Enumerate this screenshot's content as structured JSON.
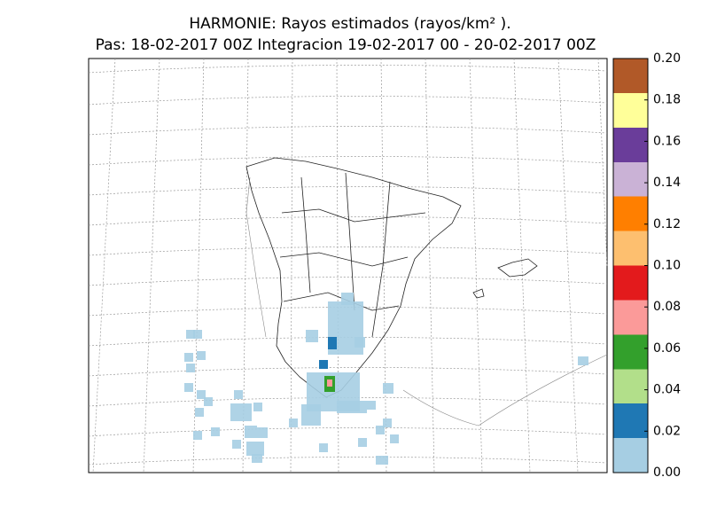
{
  "header": {
    "title": "HARMONIE: Rayos estimados  (rayos/km² ).",
    "subtitle": "Pas: 18-02-2017 00Z Integracion 19-02-2017 00 - 20-02-2017 00Z"
  },
  "colorbar": {
    "lim": [
      0,
      0.2
    ],
    "ticks": [
      {
        "value": 0,
        "label": "0.00"
      },
      {
        "value": 0.02,
        "label": "0.02"
      },
      {
        "value": 0.04,
        "label": "0.04"
      },
      {
        "value": 0.06,
        "label": "0.06"
      },
      {
        "value": 0.08,
        "label": "0.08"
      },
      {
        "value": 0.1,
        "label": "0.10"
      },
      {
        "value": 0.12,
        "label": "0.12"
      },
      {
        "value": 0.14,
        "label": "0.14"
      },
      {
        "value": 0.16,
        "label": "0.16"
      },
      {
        "value": 0.18,
        "label": "0.18"
      },
      {
        "value": 0.2,
        "label": "0.20"
      }
    ],
    "colors": [
      "#a6cee3",
      "#1f78b4",
      "#b2df8a",
      "#33a02c",
      "#fb9a99",
      "#e31a1c",
      "#fdbf6f",
      "#ff7f00",
      "#cab2d6",
      "#6a3d9a",
      "#ffff99",
      "#b15928"
    ]
  }
}
